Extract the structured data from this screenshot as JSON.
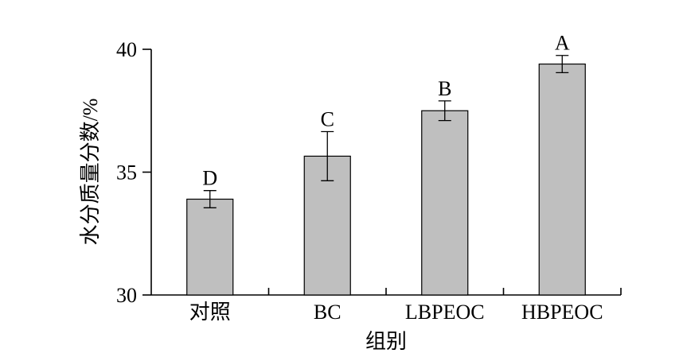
{
  "chart_data": {
    "type": "bar",
    "categories": [
      "对照",
      "BC",
      "LBPEOC",
      "HBPEOC"
    ],
    "values": [
      33.9,
      35.65,
      37.5,
      39.4
    ],
    "errors": [
      0.35,
      1.0,
      0.4,
      0.35
    ],
    "significance_labels": [
      "D",
      "C",
      "B",
      "A"
    ],
    "xlabel": "组别",
    "ylabel": "水分质量分数/%",
    "ylim": [
      30,
      40
    ],
    "yticks": [
      30,
      35,
      40
    ],
    "grid": false,
    "colors": {
      "bar_fill": "#bfbfbf",
      "bar_stroke": "#000000",
      "axis": "#000000"
    }
  }
}
